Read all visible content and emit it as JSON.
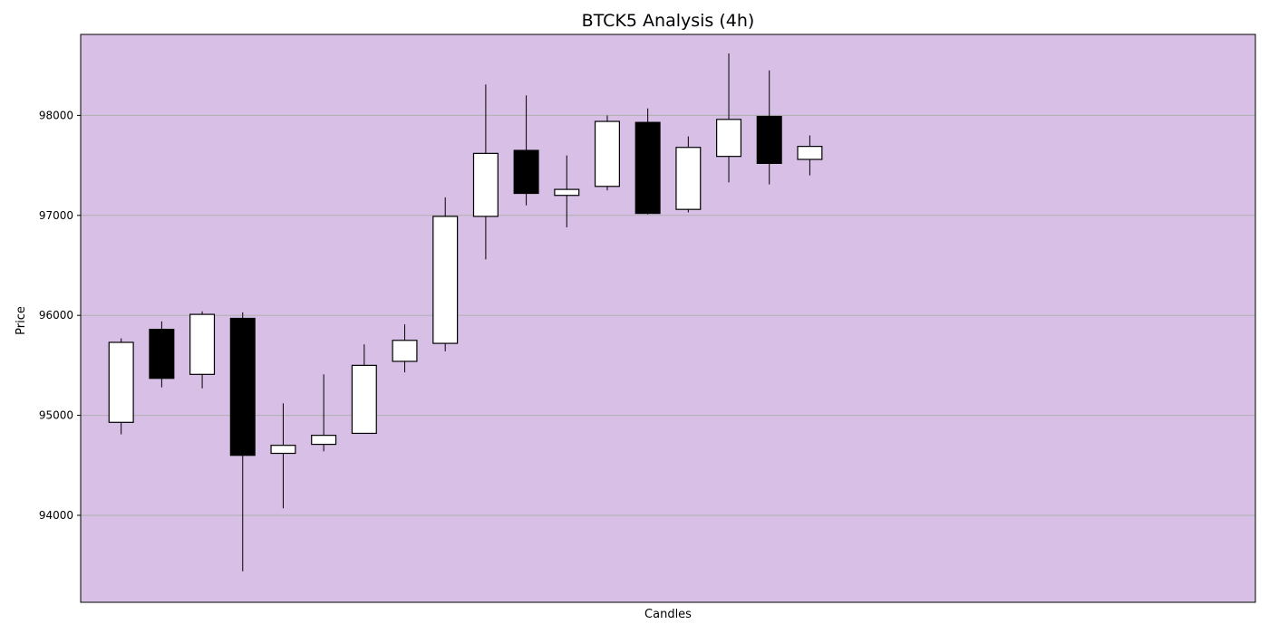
{
  "chart_data": {
    "type": "candlestick",
    "title": "BTCK5 Analysis (4h)",
    "xlabel": "Candles",
    "ylabel": "Price",
    "ylim": [
      93130,
      98810
    ],
    "yticks": [
      94000,
      95000,
      96000,
      97000,
      98000
    ],
    "x_range": [
      -1,
      28
    ],
    "grid": "horizontal",
    "colors": {
      "plot_background": "#d8bfe6",
      "up_body": "#ffffff",
      "down_body": "#000000",
      "edge": "#000000",
      "grid": "#b0b0b0"
    },
    "candles": [
      {
        "open": 94930,
        "high": 95770,
        "low": 94810,
        "close": 95730
      },
      {
        "open": 95860,
        "high": 95940,
        "low": 95280,
        "close": 95370
      },
      {
        "open": 95410,
        "high": 96040,
        "low": 95270,
        "close": 96010
      },
      {
        "open": 95970,
        "high": 96030,
        "low": 93440,
        "close": 94600
      },
      {
        "open": 94620,
        "high": 95120,
        "low": 94070,
        "close": 94700
      },
      {
        "open": 94710,
        "high": 95410,
        "low": 94640,
        "close": 94800
      },
      {
        "open": 94820,
        "high": 95710,
        "low": 94820,
        "close": 95500
      },
      {
        "open": 95540,
        "high": 95910,
        "low": 95430,
        "close": 95750
      },
      {
        "open": 95720,
        "high": 97180,
        "low": 95640,
        "close": 96990
      },
      {
        "open": 96990,
        "high": 98310,
        "low": 96560,
        "close": 97620
      },
      {
        "open": 97650,
        "high": 98200,
        "low": 97100,
        "close": 97220
      },
      {
        "open": 97200,
        "high": 97600,
        "low": 96880,
        "close": 97260
      },
      {
        "open": 97290,
        "high": 98000,
        "low": 97250,
        "close": 97940
      },
      {
        "open": 97930,
        "high": 98070,
        "low": 97010,
        "close": 97020
      },
      {
        "open": 97060,
        "high": 97790,
        "low": 97030,
        "close": 97680
      },
      {
        "open": 97590,
        "high": 98620,
        "low": 97330,
        "close": 97960
      },
      {
        "open": 97990,
        "high": 98450,
        "low": 97310,
        "close": 97520
      },
      {
        "open": 97560,
        "high": 97800,
        "low": 97400,
        "close": 97690
      }
    ]
  }
}
